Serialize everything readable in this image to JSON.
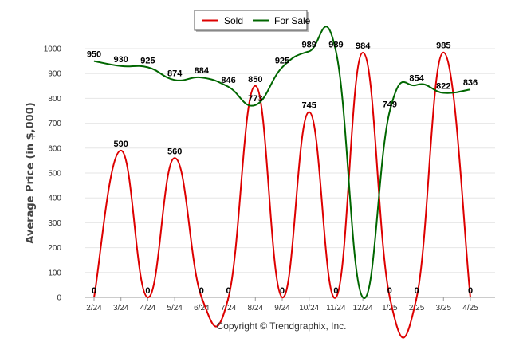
{
  "chart_data": {
    "type": "line",
    "title": "",
    "xlabel": "",
    "ylabel": "Average Price (in $,000)",
    "ylim": [
      0,
      1000
    ],
    "yticks": [
      "0",
      "100",
      "200",
      "300",
      "400",
      "500",
      "600",
      "700",
      "800",
      "900",
      "1000"
    ],
    "categories": [
      "2/24",
      "3/24",
      "4/24",
      "5/24",
      "6/24",
      "7/24",
      "8/24",
      "9/24",
      "10/24",
      "11/24",
      "12/24",
      "1/25",
      "2/25",
      "3/25",
      "4/25"
    ],
    "grid": true,
    "legend_position": "top-center",
    "series": [
      {
        "name": "Sold",
        "color": "#dd0000",
        "values": [
          0,
          590,
          0,
          560,
          0,
          0,
          850,
          0,
          745,
          0,
          984,
          0,
          0,
          985,
          0
        ],
        "labels": [
          "0",
          "590",
          "0",
          "560",
          "0",
          "0",
          "850",
          "0",
          "745",
          "0",
          "984",
          "0",
          "0",
          "985",
          "0"
        ]
      },
      {
        "name": "For Sale",
        "color": "#006600",
        "values": [
          950,
          930,
          925,
          874,
          884,
          846,
          773,
          925,
          989,
          989,
          0,
          749,
          854,
          822,
          836
        ],
        "labels": [
          "950",
          "930",
          "925",
          "874",
          "884",
          "846",
          "773",
          "925",
          "989",
          "989",
          "",
          "749",
          "854",
          "822",
          "836"
        ]
      }
    ]
  },
  "footer": {
    "copyright": "Copyright © Trendgraphix, Inc."
  }
}
